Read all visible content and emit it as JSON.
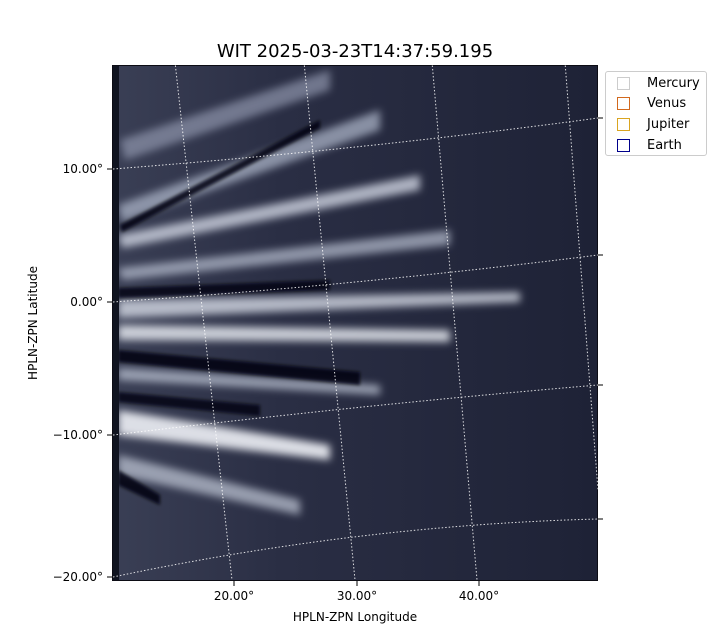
{
  "chart_data": {
    "type": "heatmap",
    "title": "WIT 2025-03-23T14:37:59.195",
    "xlabel": "HPLN-ZPN Longitude",
    "ylabel": "HPLN-ZPN Latitude",
    "colormap": "bone",
    "grid": true,
    "grid_style": "dotted white",
    "xticks": [
      {
        "value": 20,
        "label": "20.00°"
      },
      {
        "value": 30,
        "label": "30.00°"
      },
      {
        "value": 40,
        "label": "40.00°"
      }
    ],
    "yticks": [
      {
        "value": 10,
        "label": "10.00°"
      },
      {
        "value": 0,
        "label": "0.00°"
      },
      {
        "value": -10,
        "label": "−10.00°"
      },
      {
        "value": -20,
        "label": "−20.00°"
      }
    ],
    "legend": {
      "placement": "upper-right-outside",
      "entries": [
        {
          "name": "Mercury",
          "color": "#cccccc"
        },
        {
          "name": "Venus",
          "color": "#d2691e"
        },
        {
          "name": "Jupiter",
          "color": "#daa520"
        },
        {
          "name": "Earth",
          "color": "#00008b"
        }
      ]
    }
  }
}
